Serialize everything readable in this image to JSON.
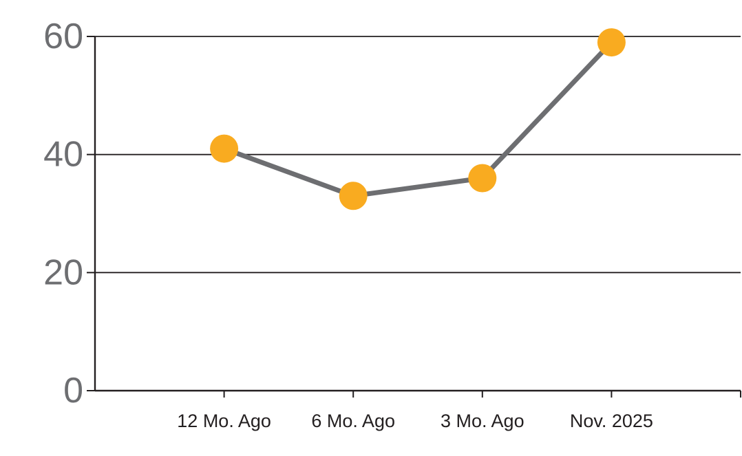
{
  "chart_data": {
    "type": "line",
    "title": "",
    "xlabel": "",
    "ylabel": "",
    "categories": [
      "12 Mo. Ago",
      "6 Mo. Ago",
      "3 Mo. Ago",
      "Nov. 2025"
    ],
    "values": [
      41,
      33,
      36,
      59
    ],
    "yticks": [
      0,
      20,
      40,
      60
    ],
    "ytick_labels": [
      "0",
      "20",
      "40",
      "60"
    ],
    "ylim": [
      0,
      60
    ],
    "grid": true,
    "legend": false,
    "marker": "circle",
    "colors": {
      "background": "#FFFFFF",
      "point_fill": "#F9AB20",
      "line_stroke": "#6D6E71",
      "grid_stroke": "#231F20",
      "axis_stroke": "#231F20",
      "ytick_label_color": "#6D6E71",
      "xtick_label_color": "#231F20"
    }
  }
}
